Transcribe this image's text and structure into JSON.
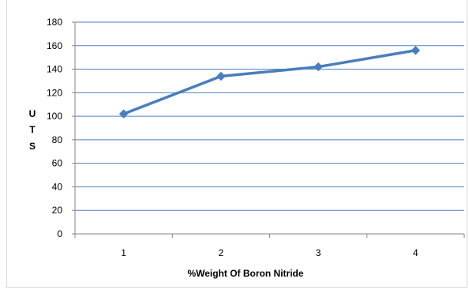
{
  "chart_data": {
    "type": "line",
    "xlabel": "%Weight Of Boron Nitride",
    "ylabel_letters": [
      "U",
      "T",
      "S"
    ],
    "x": [
      1,
      2,
      3,
      4
    ],
    "y_ticks": [
      0,
      20,
      40,
      60,
      80,
      100,
      120,
      140,
      160,
      180
    ],
    "ylim": [
      0,
      180
    ],
    "grid": true,
    "legend": "none",
    "series": [
      {
        "values": [
          102,
          134,
          142,
          156
        ],
        "color": "#4a7ebb",
        "marker": "diamond"
      }
    ]
  }
}
